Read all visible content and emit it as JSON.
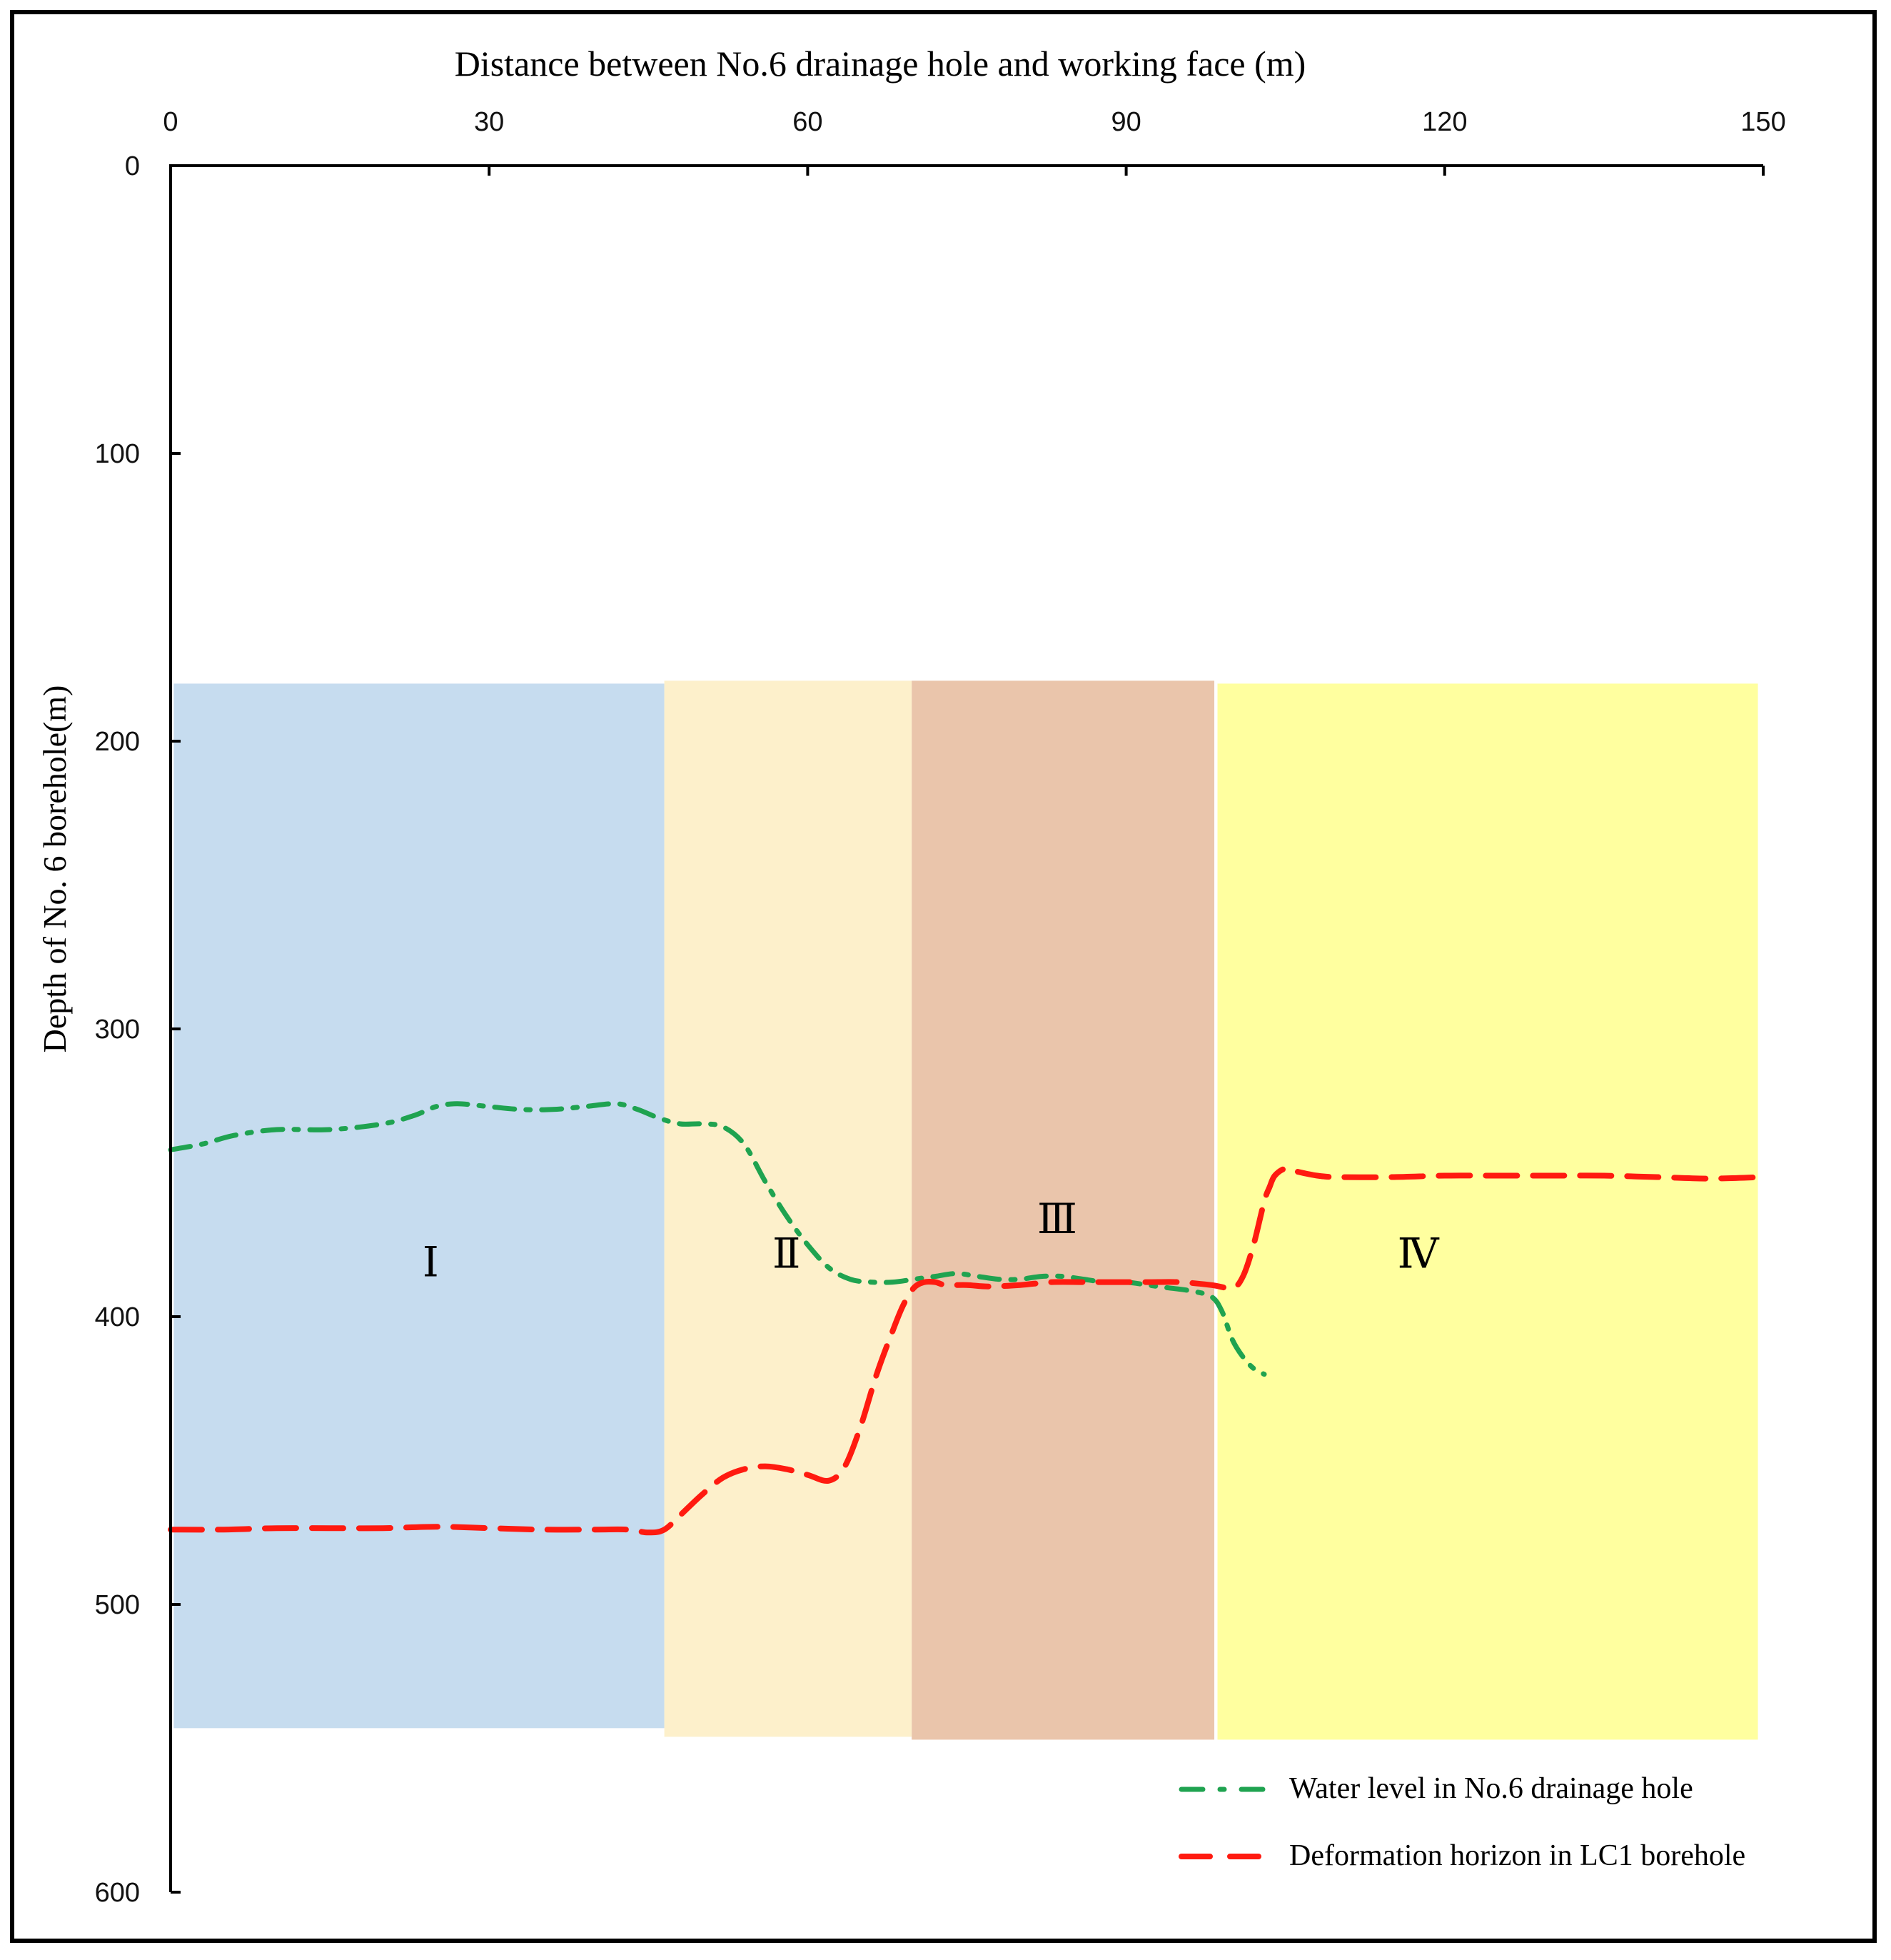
{
  "chart_data": {
    "type": "line",
    "title": "Distance between No.6 drainage hole and working face (m)",
    "xlabel": "Distance between No.6 drainage hole and working face (m)",
    "ylabel": "Depth of  No. 6 borehole(m)",
    "xlim": [
      0,
      150
    ],
    "ylim": [
      0,
      600
    ],
    "y_inverted": true,
    "x_axis_position": "top",
    "x_ticks": [
      0,
      30,
      60,
      90,
      120,
      150
    ],
    "y_ticks": [
      0,
      100,
      200,
      300,
      400,
      500,
      600
    ],
    "grid": false,
    "legend_position": "bottom-right",
    "regions": [
      {
        "label": "Ⅰ",
        "x_range": [
          0.3,
          46.5
        ],
        "y_range": [
          180,
          543
        ],
        "color": "#c6dcef",
        "label_at": [
          24.5,
          386
        ]
      },
      {
        "label": "Ⅱ",
        "x_range": [
          46.5,
          69.8
        ],
        "y_range": [
          179,
          546
        ],
        "color": "#fdf0cb",
        "label_at": [
          58,
          383
        ]
      },
      {
        "label": "Ⅲ",
        "x_range": [
          69.8,
          98.3
        ],
        "y_range": [
          179,
          547
        ],
        "color": "#eac5ab",
        "label_at": [
          83.5,
          371
        ]
      },
      {
        "label": "Ⅳ",
        "x_range": [
          98.6,
          149.5
        ],
        "y_range": [
          180,
          547
        ],
        "color": "#ffff9f",
        "label_at": [
          117.5,
          383
        ]
      }
    ],
    "series": [
      {
        "name": "Water level in No.6 drainage hole",
        "color": "#1fa350",
        "style": "dash-dot",
        "x": [
          0,
          3,
          6,
          10,
          15,
          20,
          23,
          25,
          27,
          30,
          33,
          36,
          39,
          42,
          44,
          46,
          48,
          50,
          52,
          54,
          56,
          58,
          60,
          62,
          64,
          66,
          68,
          70,
          72,
          74,
          76,
          78,
          80,
          82,
          84,
          86,
          88,
          90,
          92,
          94,
          96,
          98,
          99,
          100,
          101,
          102,
          103
        ],
        "values": [
          342,
          340,
          337,
          335,
          335,
          333,
          330,
          327,
          326,
          327,
          328,
          328,
          327,
          326,
          328,
          331,
          333,
          333,
          334,
          340,
          353,
          365,
          375,
          383,
          387,
          388,
          388,
          387,
          386,
          385,
          386,
          387,
          387,
          386,
          386,
          387,
          388,
          388,
          389,
          390,
          391,
          393,
          398,
          408,
          414,
          418,
          420
        ]
      },
      {
        "name": "Deformation horizon in LC1 borehole",
        "color": "#ff1a10",
        "style": "dash",
        "x": [
          0,
          5,
          10,
          15,
          20,
          25,
          30,
          35,
          40,
          43,
          45,
          46.5,
          48,
          50,
          52,
          54,
          56,
          58,
          60,
          62,
          63.5,
          65,
          66.5,
          68,
          69,
          70,
          71,
          72,
          73,
          75,
          77,
          80,
          83,
          86,
          89,
          92,
          95,
          98,
          100,
          101,
          102,
          103,
          103.5,
          104,
          105,
          106,
          108,
          110,
          115,
          120,
          125,
          130,
          135,
          140,
          145,
          150
        ],
        "values": [
          474,
          474,
          473.5,
          473.5,
          473.5,
          473,
          473.5,
          474,
          474,
          474,
          475,
          474,
          469,
          462,
          456,
          453,
          452,
          453,
          455,
          457,
          452,
          438,
          420,
          405,
          396,
          390,
          388,
          388,
          389,
          389,
          389.5,
          389,
          388,
          388,
          388,
          388,
          388,
          389,
          390,
          386,
          375,
          360,
          355,
          351,
          348.5,
          349.5,
          351,
          351.5,
          351.5,
          351,
          351,
          351,
          351,
          351.5,
          352,
          351.5
        ]
      }
    ]
  }
}
